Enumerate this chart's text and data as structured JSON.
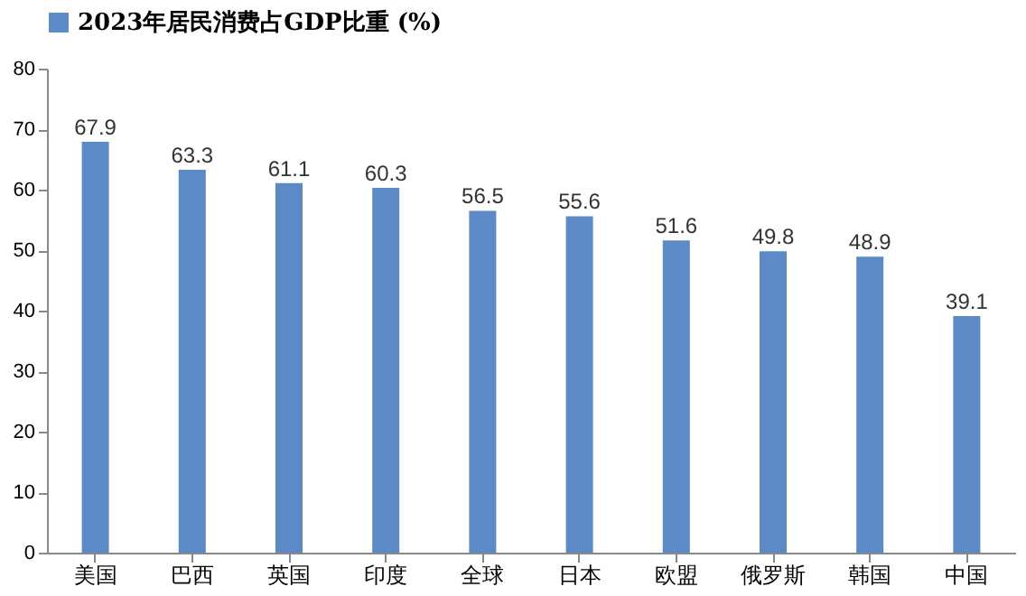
{
  "chart_data": {
    "type": "bar",
    "categories": [
      "美国",
      "巴西",
      "英国",
      "印度",
      "全球",
      "日本",
      "欧盟",
      "俄罗斯",
      "韩国",
      "中国"
    ],
    "series": [
      {
        "name": "2023年居民消费占GDP比重 (%)",
        "color": "#5b8ac6",
        "values": [
          67.9,
          63.3,
          61.1,
          60.3,
          56.5,
          55.6,
          51.6,
          49.8,
          48.9,
          39.1
        ]
      }
    ],
    "ylim": [
      0,
      80
    ],
    "yticks": [
      0,
      10,
      20,
      30,
      40,
      50,
      60,
      70,
      80
    ],
    "data_labels": true,
    "grid": false,
    "legend": "top"
  }
}
